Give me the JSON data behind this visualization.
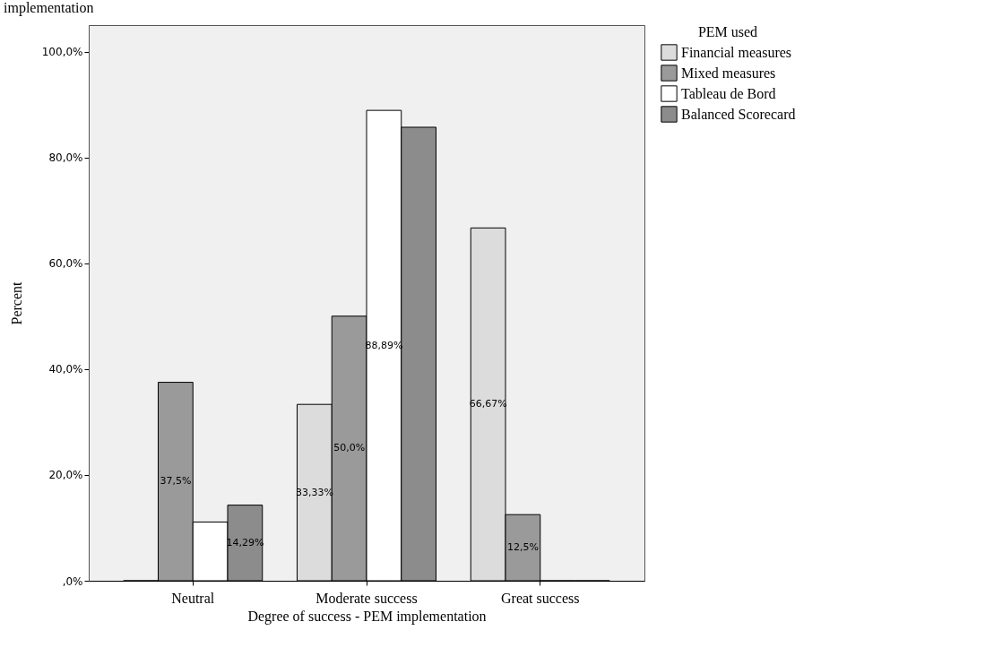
{
  "chart_data": {
    "type": "bar",
    "xlabel": "Degree of success - PEM implementation",
    "ylabel": "Percent",
    "legend_title": "PEM used",
    "annotations": [
      "implementation"
    ],
    "categories": [
      "Neutral",
      "Moderate success",
      "Great success"
    ],
    "series": [
      {
        "name": "Financial measures",
        "color": "#dcdcdc",
        "values": [
          0,
          33.33,
          66.67
        ],
        "value_labels": [
          null,
          "33,33%",
          "66,67%"
        ]
      },
      {
        "name": "Mixed measures",
        "color": "#9a9a9a",
        "values": [
          37.5,
          50.0,
          12.5
        ],
        "value_labels": [
          "37,5%",
          "50,0%",
          "12,5%"
        ]
      },
      {
        "name": "Tableau de Bord",
        "color": "#ffffff",
        "values": [
          11.1,
          88.89,
          0
        ],
        "value_labels": [
          null,
          "88,89%",
          null
        ]
      },
      {
        "name": "Balanced Scorecard",
        "color": "#8c8c8c",
        "values": [
          14.29,
          85.7,
          0
        ],
        "value_labels": [
          "14,29%",
          null,
          null
        ]
      }
    ],
    "ylim": [
      0,
      105
    ],
    "yticks": [
      {
        "value": 0,
        "label": ",0%"
      },
      {
        "value": 20,
        "label": "20,0%"
      },
      {
        "value": 40,
        "label": "40,0%"
      },
      {
        "value": 60,
        "label": "60,0%"
      },
      {
        "value": 80,
        "label": "80,0%"
      },
      {
        "value": 100,
        "label": "100,0%"
      }
    ],
    "grid": false,
    "legend": "top right"
  }
}
